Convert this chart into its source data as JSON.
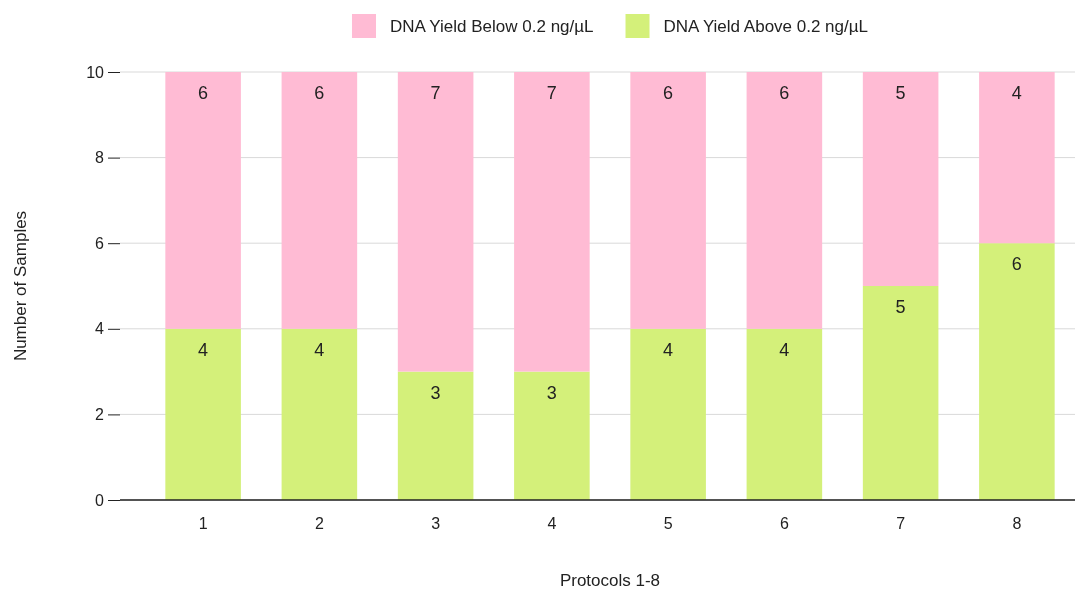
{
  "chart_data": {
    "type": "bar",
    "stacked": true,
    "xlabel": "Protocols 1-8",
    "ylabel": "Number of Samples",
    "categories": [
      "1",
      "2",
      "3",
      "4",
      "5",
      "6",
      "7",
      "8"
    ],
    "series": [
      {
        "name": "DNA Yield Above 0.2 ng/µL",
        "color": "#d4f07a",
        "values": [
          4,
          4,
          3,
          3,
          4,
          4,
          5,
          6
        ]
      },
      {
        "name": "DNA Yield Below 0.2 ng/µL",
        "color": "#ffbbd4",
        "values": [
          6,
          6,
          7,
          7,
          6,
          6,
          5,
          4
        ]
      }
    ],
    "ylim": [
      0,
      10
    ],
    "yticks": [
      0,
      2,
      4,
      6,
      8,
      10
    ],
    "grid": "y",
    "legend": "top",
    "data_labels": true
  }
}
